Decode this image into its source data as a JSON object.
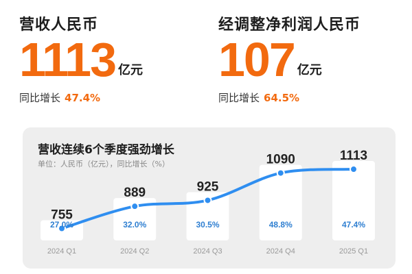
{
  "revenue": {
    "title": "营收人民币",
    "value": "1113",
    "unit": "亿元",
    "yoy_label": "同比增长",
    "yoy_value": "47.4%"
  },
  "net_profit": {
    "title": "经调整净利润人民币",
    "value": "107",
    "unit": "亿元",
    "yoy_label": "同比增长",
    "yoy_value": "64.5%"
  },
  "colors": {
    "accent": "#f26a0f",
    "line": "#2f8ef0",
    "growth_text": "#2f7fd1"
  },
  "chart_data": {
    "type": "line",
    "title": "营收连续6个季度强劲增长",
    "subtitle": "单位：人民币（亿元），同比增长（%）",
    "categories": [
      "2024 Q1",
      "2024 Q2",
      "2024 Q3",
      "2024 Q4",
      "2025 Q1"
    ],
    "values": [
      755,
      889,
      925,
      1090,
      1113
    ],
    "value_labels": [
      "755",
      "889",
      "925",
      "1090",
      "1113"
    ],
    "growth": [
      "27.0%",
      "32.0%",
      "30.5%",
      "48.8%",
      "47.4%"
    ],
    "ylim": [
      600,
      1200
    ],
    "grid": false,
    "legend": "none"
  }
}
